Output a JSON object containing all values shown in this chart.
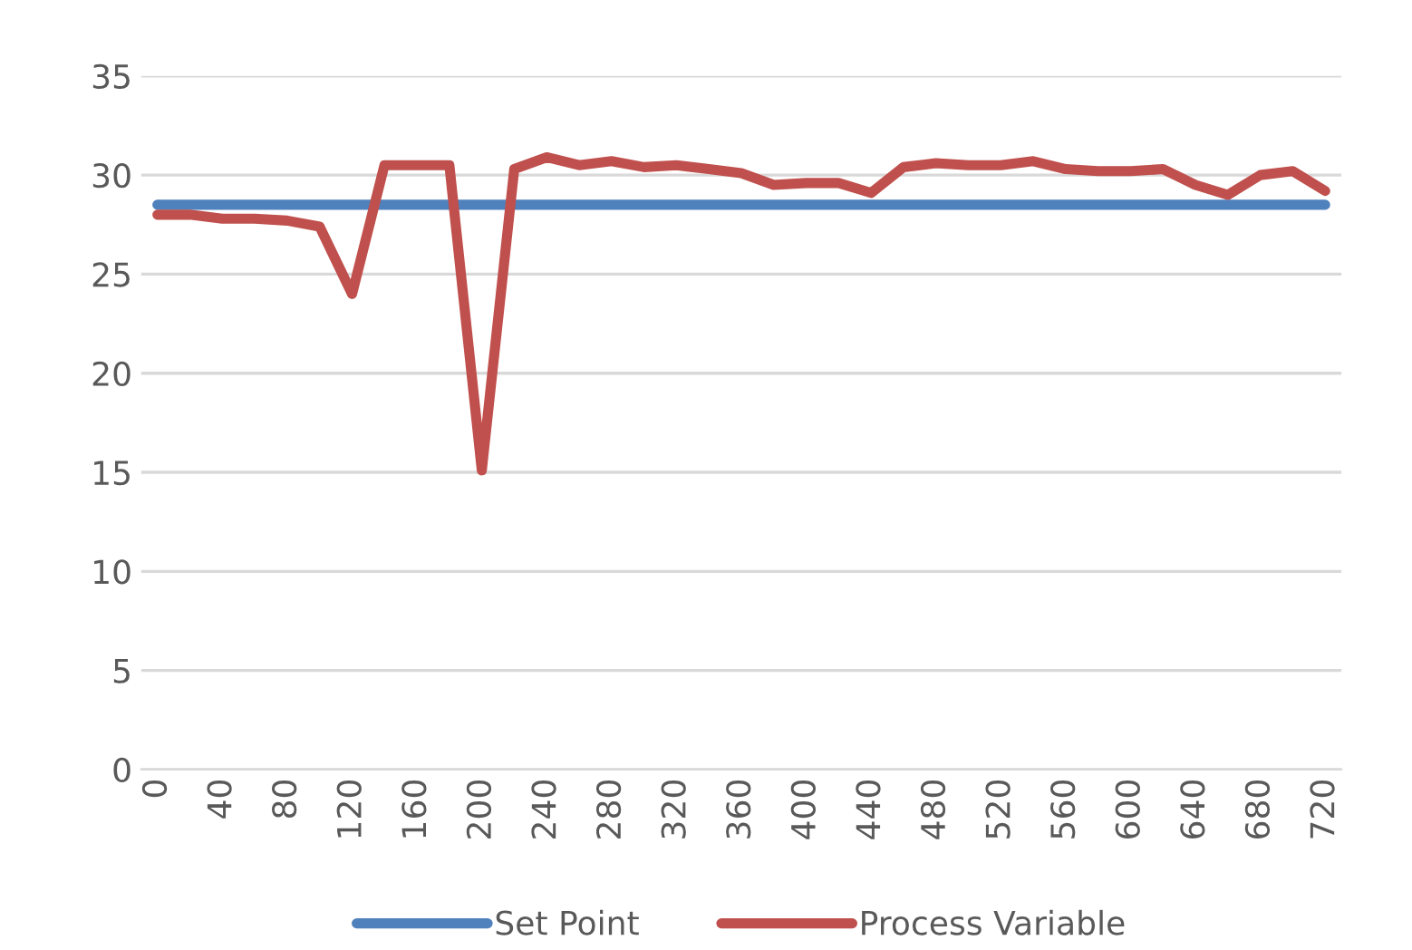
{
  "chart_data": {
    "type": "line",
    "x": [
      0,
      20,
      40,
      60,
      80,
      100,
      120,
      140,
      160,
      180,
      200,
      220,
      240,
      260,
      280,
      300,
      320,
      340,
      360,
      380,
      400,
      420,
      440,
      460,
      480,
      500,
      520,
      540,
      560,
      580,
      600,
      620,
      640,
      660,
      680,
      700,
      720
    ],
    "series": [
      {
        "name": "Set Point",
        "color": "#4f81bd",
        "values": [
          28.5,
          28.5,
          28.5,
          28.5,
          28.5,
          28.5,
          28.5,
          28.5,
          28.5,
          28.5,
          28.5,
          28.5,
          28.5,
          28.5,
          28.5,
          28.5,
          28.5,
          28.5,
          28.5,
          28.5,
          28.5,
          28.5,
          28.5,
          28.5,
          28.5,
          28.5,
          28.5,
          28.5,
          28.5,
          28.5,
          28.5,
          28.5,
          28.5,
          28.5,
          28.5,
          28.5,
          28.5
        ]
      },
      {
        "name": "Process Variable",
        "color": "#c0504d",
        "values": [
          28.0,
          28.0,
          27.8,
          27.8,
          27.7,
          27.4,
          24.0,
          30.5,
          30.5,
          30.5,
          15.1,
          30.3,
          30.9,
          30.5,
          30.7,
          30.4,
          30.5,
          30.3,
          30.1,
          29.5,
          29.6,
          29.6,
          29.1,
          30.4,
          30.6,
          30.5,
          30.5,
          30.7,
          30.3,
          30.2,
          30.2,
          30.3,
          29.5,
          29.0,
          30.0,
          30.2,
          29.2
        ]
      }
    ],
    "xlim": [
      -10,
      730
    ],
    "xticks": [
      0,
      40,
      80,
      120,
      160,
      200,
      240,
      280,
      320,
      360,
      400,
      440,
      480,
      520,
      560,
      600,
      640,
      680,
      720
    ],
    "ylim": [
      0,
      35
    ],
    "yticks": [
      0,
      5,
      10,
      15,
      20,
      25,
      30,
      35
    ],
    "grid": "y",
    "legend": "bottom",
    "marker": "none",
    "line_style": "solid"
  }
}
